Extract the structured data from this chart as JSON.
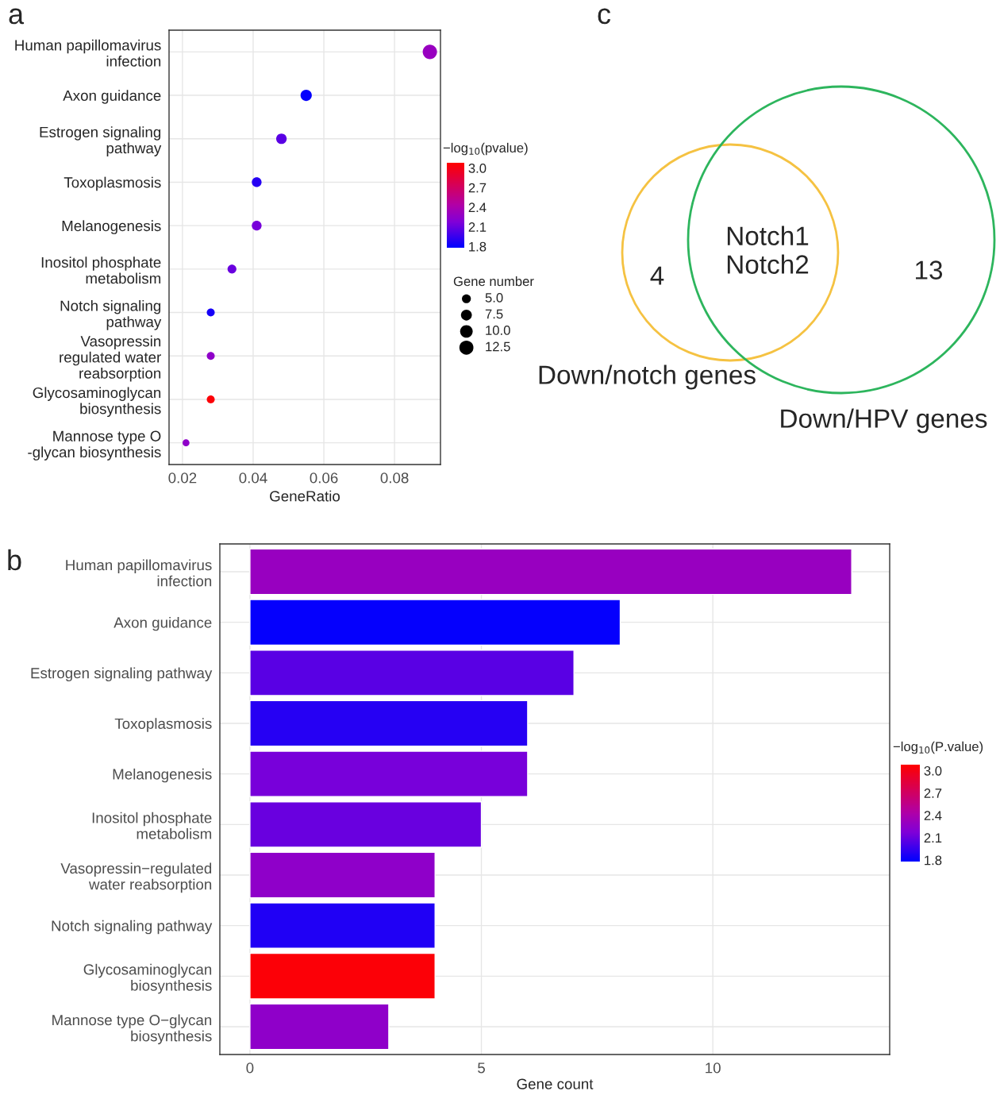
{
  "chart_data": [
    {
      "type": "bubble",
      "title": "a",
      "orientation": "horizontal",
      "categories": [
        "Human papillomavirus\ninfection",
        "Axon guidance",
        "Estrogen signaling\npathway",
        "Toxoplasmosis",
        "Melanogenesis",
        "Inositol phosphate\nmetabolism",
        "Notch signaling\npathway",
        "Vasopressin\nregulated water\nreabsorption",
        "Glycosaminoglycan\nbiosynthesis",
        "Mannose type O\n-glycan biosynthesis"
      ],
      "values": [
        0.09,
        0.055,
        0.048,
        0.041,
        0.041,
        0.034,
        0.028,
        0.028,
        0.028,
        0.021
      ],
      "sizes": [
        13,
        8,
        7,
        6,
        6,
        5,
        4,
        4,
        4,
        3
      ],
      "size_legend": [
        {
          "value": 5,
          "label": "5.0"
        },
        7.5,
        {
          "value": 10,
          "label": "10.0"
        },
        12.5
      ],
      "cvalues": [
        2.3,
        1.8,
        2.05,
        1.9,
        2.15,
        2.1,
        1.85,
        2.25,
        3.05,
        2.25
      ],
      "clim": [
        1.78,
        3.08
      ],
      "cticks": [
        {
          "value": 1.8,
          "label": "1.8"
        },
        {
          "value": 2.1,
          "label": "2.1"
        },
        {
          "value": 2.4,
          "label": "2.4"
        },
        {
          "value": 2.7,
          "label": "2.7"
        },
        {
          "value": 3.0,
          "label": "3.0"
        }
      ],
      "clabel": "−log$_{10}$(pvalue)",
      "legend_title": "Gene number",
      "xlabel": "GeneRatio",
      "xlim": [
        0.0162,
        0.093
      ],
      "xticks": [
        0.02,
        0.04,
        0.06,
        0.08
      ],
      "grid": true
    },
    {
      "type": "other",
      "title": "c",
      "categories": [
        "Down/notch genes",
        "Down/HPV genes"
      ],
      "values": [
        4,
        13
      ],
      "colors": [
        "#f5c242",
        "#2db55d"
      ],
      "data_labels": true,
      "annotations": [
        "Notch1\nNotch2"
      ]
    },
    {
      "type": "bar",
      "title": "b",
      "orientation": "horizontal",
      "categories": [
        "Human papillomavirus\ninfection",
        "Axon guidance",
        "Estrogen signaling pathway",
        "Toxoplasmosis",
        "Melanogenesis",
        "Inositol phosphate\nmetabolism",
        "Vasopressin−regulated\nwater reabsorption",
        "Notch signaling pathway",
        "Glycosaminoglycan\nbiosynthesis",
        "Mannose type O−glycan\nbiosynthesis"
      ],
      "values": [
        13,
        8,
        7,
        6,
        6,
        5,
        4,
        4,
        4,
        3
      ],
      "cvalues": [
        2.3,
        1.8,
        2.05,
        1.9,
        2.15,
        2.1,
        2.25,
        1.88,
        3.05,
        2.25
      ],
      "clim": [
        1.78,
        3.08
      ],
      "cticks": [
        {
          "value": 1.8,
          "label": "1.8"
        },
        {
          "value": 2.1,
          "label": "2.1"
        },
        {
          "value": 2.4,
          "label": "2.4"
        },
        {
          "value": 2.7,
          "label": "2.7"
        },
        {
          "value": 3.0,
          "label": "3.0"
        }
      ],
      "clabel": "−log$_{10}$(P.value)",
      "xlabel": "Gene count",
      "xlim": [
        -0.65,
        13.82
      ],
      "xticks": [
        0,
        5,
        10
      ],
      "grid": true
    }
  ]
}
